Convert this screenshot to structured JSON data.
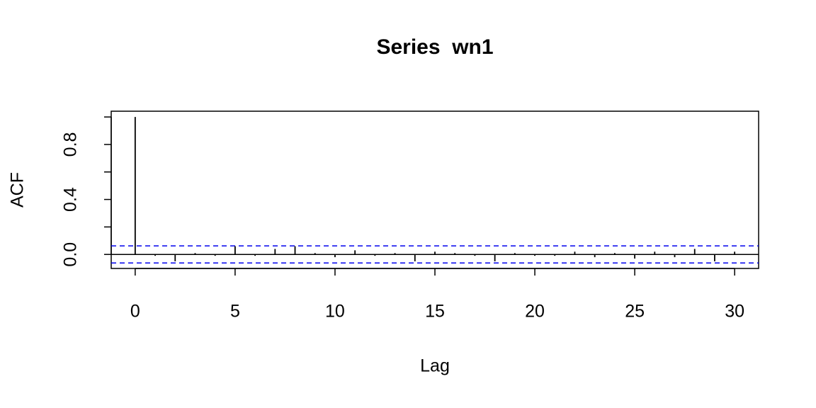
{
  "chart_data": {
    "type": "acf",
    "title": "Series  wn1",
    "x_label": "Lag",
    "y_label": "ACF",
    "x": [
      0,
      1,
      2,
      3,
      4,
      5,
      6,
      7,
      8,
      9,
      10,
      11,
      12,
      13,
      14,
      15,
      16,
      17,
      18,
      19,
      20,
      21,
      22,
      23,
      24,
      25,
      26,
      27,
      28,
      29,
      30
    ],
    "values": [
      1,
      -0.01,
      -0.05,
      0.01,
      -0.01,
      0.06,
      -0.01,
      0.04,
      0.06,
      0.01,
      -0.02,
      0.03,
      -0.01,
      0.01,
      -0.05,
      0.02,
      0.01,
      -0.01,
      -0.05,
      0.01,
      -0.01,
      -0.01,
      0.02,
      -0.02,
      0.01,
      -0.03,
      0.02,
      -0.02,
      0.04,
      -0.05,
      0.02
    ],
    "color": "#000000",
    "ci": [
      -0.062,
      0.062
    ],
    "ci_color": "#0000ee",
    "xlim": [
      -1.2,
      31.2
    ],
    "xticks": [
      0,
      5,
      10,
      15,
      20,
      25,
      30
    ],
    "ylim": [
      -0.102,
      1.042
    ],
    "yticks": [
      {
        "value": 0,
        "label": "0.0"
      },
      {
        "value": 0.2,
        "label": null
      },
      {
        "value": 0.4,
        "label": "0.4"
      },
      {
        "value": 0.6,
        "label": null
      },
      {
        "value": 0.8,
        "label": "0.8"
      },
      {
        "value": 1.0,
        "label": null
      }
    ]
  }
}
